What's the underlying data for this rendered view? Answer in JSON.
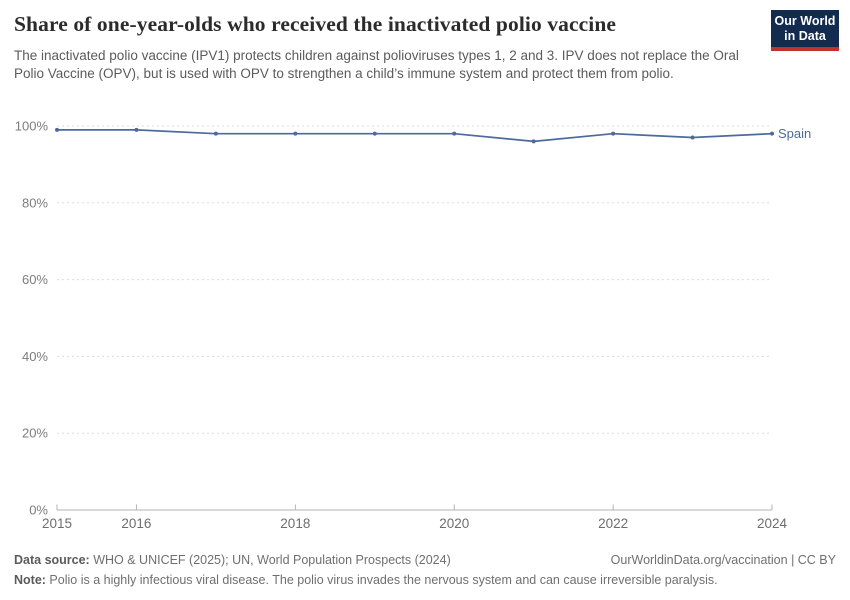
{
  "header": {
    "title": "Share of one-year-olds who received the inactivated polio vaccine",
    "subtitle": "The inactivated polio vaccine (IPV1) protects children against polioviruses types 1, 2 and 3. IPV does not replace the Oral Polio Vaccine (OPV), but is used with OPV to strengthen a child’s immune system and protect them from polio."
  },
  "logo": {
    "line1": "Our World",
    "line2": "in Data",
    "bg_color": "#122b4e",
    "accent_color": "#c0332d"
  },
  "chart_data": {
    "type": "line",
    "title": "Share of one-year-olds who received the inactivated polio vaccine",
    "x": [
      2015,
      2016,
      2017,
      2018,
      2019,
      2020,
      2021,
      2022,
      2023,
      2024
    ],
    "series": [
      {
        "name": "Spain",
        "values": [
          99,
          99,
          98,
          98,
          98,
          98,
          96,
          98,
          97,
          98
        ],
        "color": "#4c6a9c"
      }
    ],
    "xlabel": "",
    "ylabel": "",
    "ylim": [
      0,
      100
    ],
    "yticks": [
      0,
      20,
      40,
      60,
      80,
      100
    ],
    "ytick_suffix": "%",
    "xticks": [
      2015,
      2016,
      2018,
      2020,
      2022,
      2024
    ],
    "grid": "horizontal-dashed",
    "legend_position": "end-of-line-label",
    "colors": {
      "gridline": "#dcdcdc",
      "axis": "#b3b3b3",
      "ytick_label": "#7d7d7d",
      "xtick_label": "#6e6e6e"
    }
  },
  "footer": {
    "source_label": "Data source:",
    "source_text": " WHO & UNICEF (2025); UN, World Population Prospects (2024)",
    "attribution": "OurWorldinData.org/vaccination | CC BY",
    "note_label": "Note:",
    "note_text": " Polio is a highly infectious viral disease. The polio virus invades the nervous system and can cause irreversible paralysis."
  }
}
